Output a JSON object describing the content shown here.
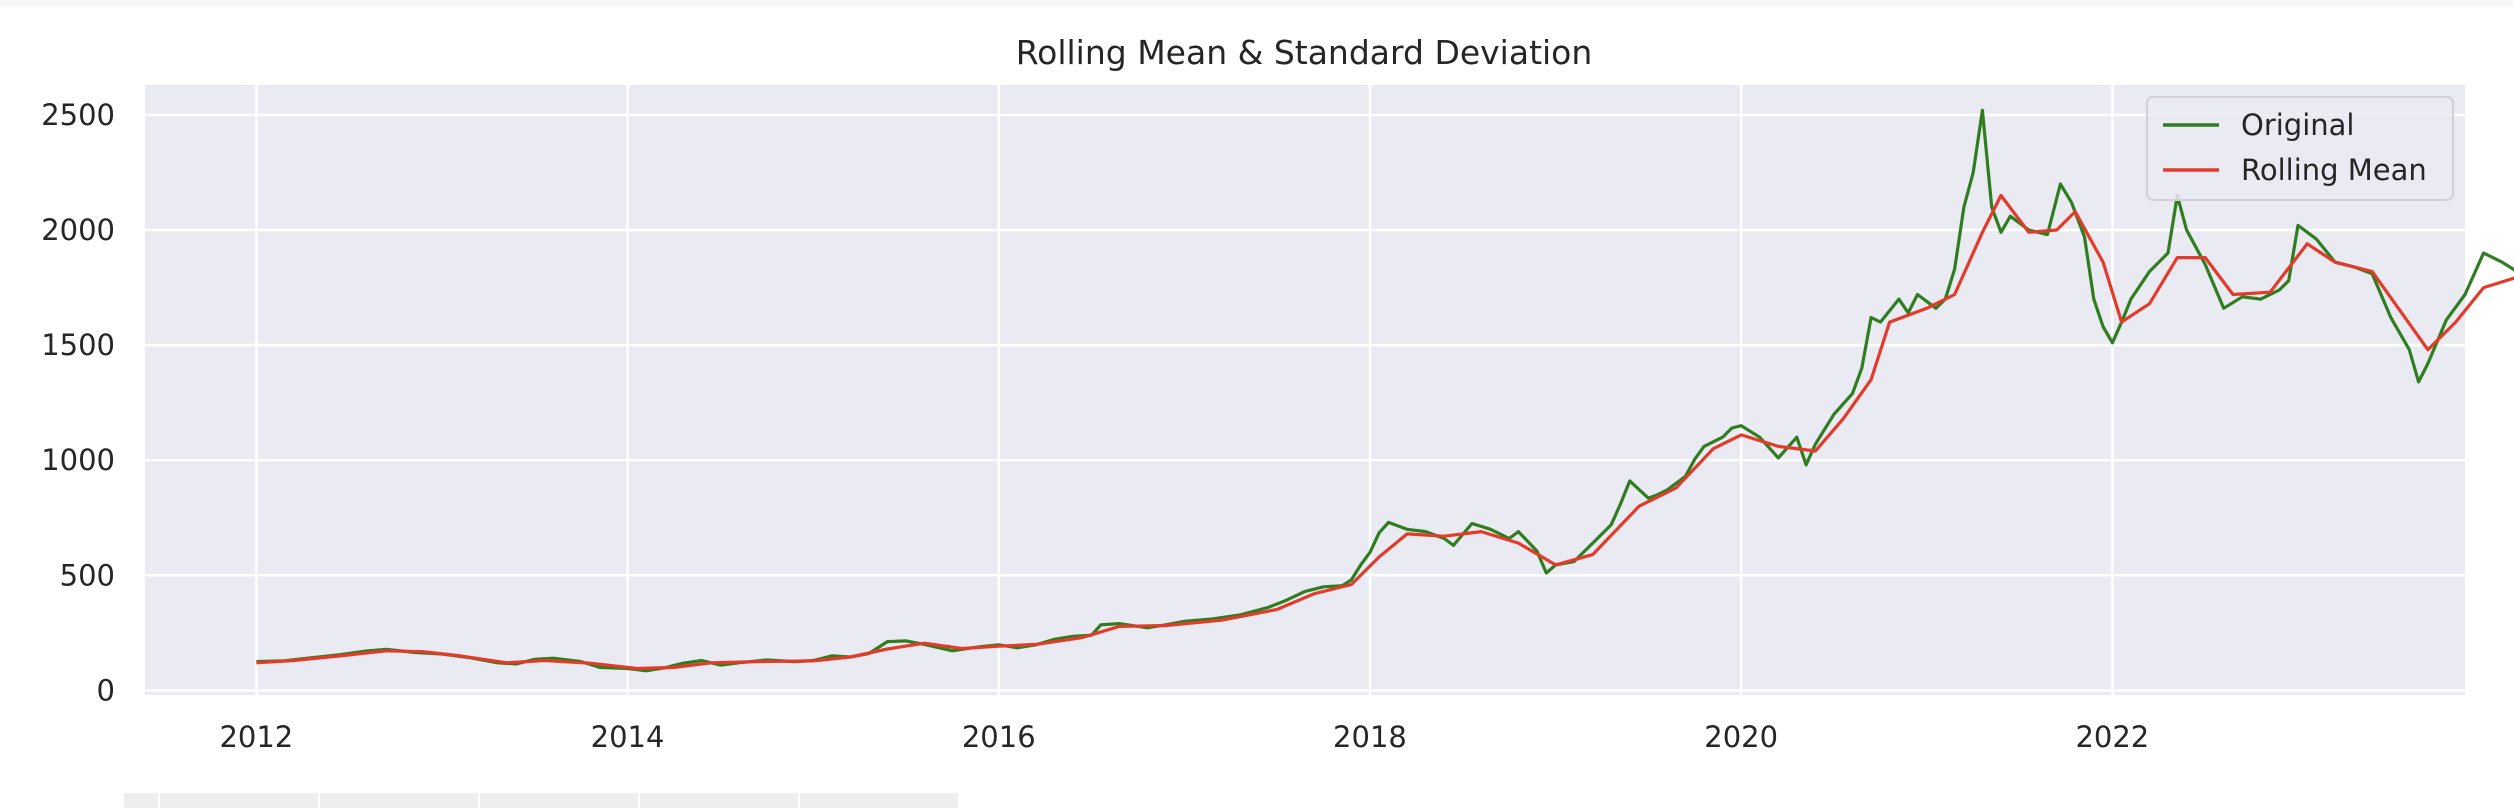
{
  "chart_data": {
    "type": "line",
    "title": "Rolling Mean & Standard Deviation",
    "xlabel": "",
    "ylabel": "",
    "xlim": [
      2011.4,
      2023.9
    ],
    "ylim": [
      -20,
      2630
    ],
    "x_ticks": [
      2012,
      2014,
      2016,
      2018,
      2020,
      2022
    ],
    "y_ticks": [
      0,
      500,
      1000,
      1500,
      2000,
      2500
    ],
    "grid": true,
    "legend_position": "top-right",
    "background": "#eaeaf2",
    "series": [
      {
        "name": "Original",
        "color": "#2e7d1f",
        "points": [
          [
            2012.0,
            125
          ],
          [
            2012.15,
            128
          ],
          [
            2012.3,
            142
          ],
          [
            2012.45,
            155
          ],
          [
            2012.6,
            172
          ],
          [
            2012.7,
            178
          ],
          [
            2012.85,
            165
          ],
          [
            2013.0,
            158
          ],
          [
            2013.15,
            142
          ],
          [
            2013.3,
            120
          ],
          [
            2013.4,
            115
          ],
          [
            2013.5,
            135
          ],
          [
            2013.6,
            140
          ],
          [
            2013.75,
            125
          ],
          [
            2013.85,
            100
          ],
          [
            2014.0,
            95
          ],
          [
            2014.1,
            85
          ],
          [
            2014.2,
            98
          ],
          [
            2014.3,
            118
          ],
          [
            2014.4,
            130
          ],
          [
            2014.5,
            110
          ],
          [
            2014.6,
            120
          ],
          [
            2014.75,
            132
          ],
          [
            2014.9,
            125
          ],
          [
            2015.0,
            130
          ],
          [
            2015.1,
            150
          ],
          [
            2015.2,
            145
          ],
          [
            2015.3,
            160
          ],
          [
            2015.4,
            212
          ],
          [
            2015.5,
            215
          ],
          [
            2015.6,
            200
          ],
          [
            2015.75,
            172
          ],
          [
            2015.9,
            190
          ],
          [
            2016.0,
            198
          ],
          [
            2016.1,
            185
          ],
          [
            2016.2,
            198
          ],
          [
            2016.3,
            222
          ],
          [
            2016.4,
            235
          ],
          [
            2016.5,
            240
          ],
          [
            2016.55,
            285
          ],
          [
            2016.65,
            290
          ],
          [
            2016.8,
            272
          ],
          [
            2016.9,
            285
          ],
          [
            2017.0,
            300
          ],
          [
            2017.15,
            310
          ],
          [
            2017.3,
            328
          ],
          [
            2017.45,
            360
          ],
          [
            2017.55,
            392
          ],
          [
            2017.65,
            430
          ],
          [
            2017.75,
            450
          ],
          [
            2017.85,
            455
          ],
          [
            2017.9,
            480
          ],
          [
            2017.95,
            545
          ],
          [
            2018.0,
            600
          ],
          [
            2018.05,
            685
          ],
          [
            2018.1,
            730
          ],
          [
            2018.2,
            700
          ],
          [
            2018.3,
            690
          ],
          [
            2018.4,
            660
          ],
          [
            2018.45,
            630
          ],
          [
            2018.55,
            725
          ],
          [
            2018.65,
            700
          ],
          [
            2018.75,
            660
          ],
          [
            2018.8,
            690
          ],
          [
            2018.9,
            605
          ],
          [
            2018.95,
            510
          ],
          [
            2019.0,
            545
          ],
          [
            2019.1,
            560
          ],
          [
            2019.2,
            640
          ],
          [
            2019.3,
            720
          ],
          [
            2019.35,
            810
          ],
          [
            2019.4,
            910
          ],
          [
            2019.5,
            835
          ],
          [
            2019.55,
            850
          ],
          [
            2019.6,
            870
          ],
          [
            2019.7,
            930
          ],
          [
            2019.75,
            1005
          ],
          [
            2019.8,
            1060
          ],
          [
            2019.9,
            1100
          ],
          [
            2019.95,
            1140
          ],
          [
            2020.0,
            1150
          ],
          [
            2020.1,
            1100
          ],
          [
            2020.2,
            1010
          ],
          [
            2020.3,
            1100
          ],
          [
            2020.35,
            980
          ],
          [
            2020.4,
            1070
          ],
          [
            2020.5,
            1200
          ],
          [
            2020.6,
            1290
          ],
          [
            2020.65,
            1400
          ],
          [
            2020.7,
            1620
          ],
          [
            2020.75,
            1600
          ],
          [
            2020.85,
            1700
          ],
          [
            2020.9,
            1640
          ],
          [
            2020.95,
            1720
          ],
          [
            2021.05,
            1660
          ],
          [
            2021.1,
            1700
          ],
          [
            2021.15,
            1830
          ],
          [
            2021.2,
            2100
          ],
          [
            2021.25,
            2250
          ],
          [
            2021.3,
            2520
          ],
          [
            2021.35,
            2100
          ],
          [
            2021.4,
            1990
          ],
          [
            2021.45,
            2060
          ],
          [
            2021.55,
            2000
          ],
          [
            2021.65,
            1980
          ],
          [
            2021.72,
            2200
          ],
          [
            2021.78,
            2120
          ],
          [
            2021.85,
            1970
          ],
          [
            2021.9,
            1700
          ],
          [
            2021.95,
            1580
          ],
          [
            2022.0,
            1510
          ],
          [
            2022.05,
            1600
          ],
          [
            2022.1,
            1700
          ],
          [
            2022.2,
            1820
          ],
          [
            2022.3,
            1900
          ],
          [
            2022.35,
            2150
          ],
          [
            2022.4,
            2000
          ],
          [
            2022.5,
            1850
          ],
          [
            2022.6,
            1660
          ],
          [
            2022.7,
            1710
          ],
          [
            2022.8,
            1700
          ],
          [
            2022.9,
            1740
          ],
          [
            2022.95,
            1780
          ],
          [
            2023.0,
            2020
          ],
          [
            2023.1,
            1960
          ],
          [
            2023.2,
            1860
          ],
          [
            2023.3,
            1840
          ],
          [
            2023.4,
            1810
          ],
          [
            2023.5,
            1620
          ],
          [
            2023.6,
            1480
          ],
          [
            2023.65,
            1340
          ],
          [
            2023.7,
            1420
          ],
          [
            2023.8,
            1610
          ],
          [
            2023.9,
            1720
          ],
          [
            2024.0,
            1900
          ],
          [
            2024.1,
            1860
          ],
          [
            2024.2,
            1810
          ],
          [
            2024.3,
            1790
          ],
          [
            2024.4,
            1720
          ],
          [
            2024.45,
            1760
          ]
        ]
      },
      {
        "name": "Rolling Mean",
        "color": "#e23b2a",
        "points": [
          [
            2012.0,
            120
          ],
          [
            2012.2,
            130
          ],
          [
            2012.45,
            150
          ],
          [
            2012.7,
            172
          ],
          [
            2012.9,
            168
          ],
          [
            2013.1,
            150
          ],
          [
            2013.35,
            120
          ],
          [
            2013.55,
            130
          ],
          [
            2013.8,
            118
          ],
          [
            2014.05,
            95
          ],
          [
            2014.25,
            100
          ],
          [
            2014.45,
            120
          ],
          [
            2014.7,
            125
          ],
          [
            2015.0,
            128
          ],
          [
            2015.2,
            145
          ],
          [
            2015.4,
            180
          ],
          [
            2015.6,
            205
          ],
          [
            2015.8,
            182
          ],
          [
            2016.0,
            192
          ],
          [
            2016.2,
            200
          ],
          [
            2016.45,
            230
          ],
          [
            2016.65,
            278
          ],
          [
            2016.9,
            282
          ],
          [
            2017.2,
            305
          ],
          [
            2017.5,
            352
          ],
          [
            2017.7,
            420
          ],
          [
            2017.9,
            460
          ],
          [
            2018.05,
            580
          ],
          [
            2018.2,
            680
          ],
          [
            2018.4,
            670
          ],
          [
            2018.6,
            690
          ],
          [
            2018.8,
            640
          ],
          [
            2019.0,
            545
          ],
          [
            2019.2,
            590
          ],
          [
            2019.45,
            800
          ],
          [
            2019.65,
            880
          ],
          [
            2019.85,
            1050
          ],
          [
            2020.0,
            1110
          ],
          [
            2020.2,
            1060
          ],
          [
            2020.4,
            1040
          ],
          [
            2020.55,
            1180
          ],
          [
            2020.7,
            1350
          ],
          [
            2020.8,
            1600
          ],
          [
            2021.0,
            1660
          ],
          [
            2021.15,
            1720
          ],
          [
            2021.3,
            1990
          ],
          [
            2021.4,
            2150
          ],
          [
            2021.55,
            1990
          ],
          [
            2021.7,
            2000
          ],
          [
            2021.8,
            2080
          ],
          [
            2021.95,
            1860
          ],
          [
            2022.05,
            1600
          ],
          [
            2022.2,
            1680
          ],
          [
            2022.35,
            1880
          ],
          [
            2022.5,
            1880
          ],
          [
            2022.65,
            1720
          ],
          [
            2022.85,
            1730
          ],
          [
            2023.05,
            1940
          ],
          [
            2023.2,
            1860
          ],
          [
            2023.4,
            1820
          ],
          [
            2023.55,
            1650
          ],
          [
            2023.7,
            1480
          ],
          [
            2023.85,
            1600
          ],
          [
            2024.0,
            1750
          ],
          [
            2024.2,
            1800
          ],
          [
            2024.45,
            1750
          ]
        ]
      }
    ]
  }
}
